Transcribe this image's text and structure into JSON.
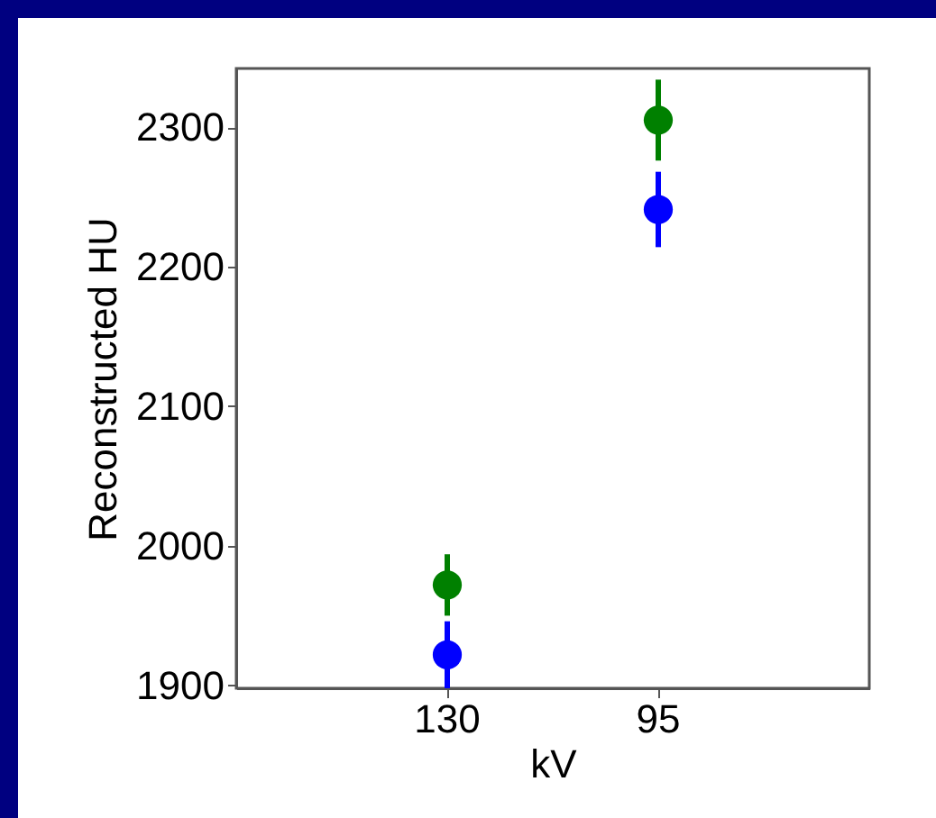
{
  "chart_data": {
    "type": "scatter",
    "xlabel": "kV",
    "ylabel": "Reconstructed HU",
    "categories": [
      "130",
      "95"
    ],
    "series": [
      {
        "color": "#008000",
        "marker": "circle",
        "values": [
          1972,
          2305
        ],
        "errors": [
          22,
          29
        ]
      },
      {
        "color": "#0000ff",
        "marker": "circle",
        "values": [
          1922,
          2241
        ],
        "errors": [
          24,
          27
        ]
      }
    ],
    "ylim": [
      1898,
      2342
    ],
    "yticks": [
      1900,
      2000,
      2100,
      2200,
      2300
    ]
  }
}
